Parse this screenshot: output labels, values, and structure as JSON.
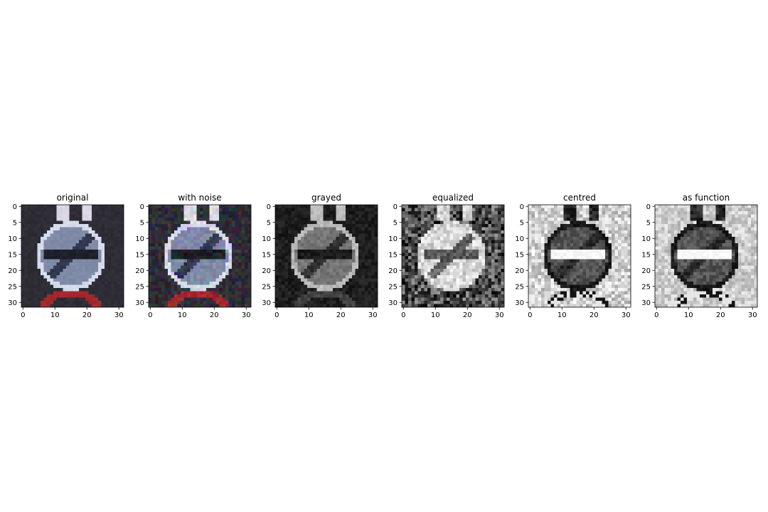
{
  "figure": {
    "panels": [
      {
        "title": "original",
        "style": "rgb_original"
      },
      {
        "title": "with noise",
        "style": "rgb_noisy"
      },
      {
        "title": "grayed",
        "style": "gray"
      },
      {
        "title": "equalized",
        "style": "equalized"
      },
      {
        "title": "centred",
        "style": "centred"
      },
      {
        "title": "as function",
        "style": "as_function"
      }
    ]
  },
  "chart_data": {
    "type": "heatmap",
    "image_shape": [
      32,
      32
    ],
    "panel_titles": [
      "original",
      "with noise",
      "grayed",
      "equalized",
      "centred",
      "as function"
    ],
    "x_ticks": [
      0,
      10,
      20,
      30
    ],
    "x_tick_labels": [
      "0",
      "10",
      "20",
      "30"
    ],
    "y_ticks": [
      0,
      5,
      10,
      15,
      20,
      25,
      30
    ],
    "y_tick_labels": [
      "0",
      "5",
      "10",
      "15",
      "20",
      "25",
      "30"
    ],
    "xlim": [
      -0.5,
      31.5
    ],
    "ylim": [
      31.5,
      -0.5
    ],
    "grid": false,
    "colors": {
      "background_dark": "#2e2d36",
      "sign_disk": "#7f8aa6",
      "sign_ring": "#d5dbea",
      "sign_bar": "#1d1f2a",
      "red_sign": "#a1292e"
    }
  }
}
